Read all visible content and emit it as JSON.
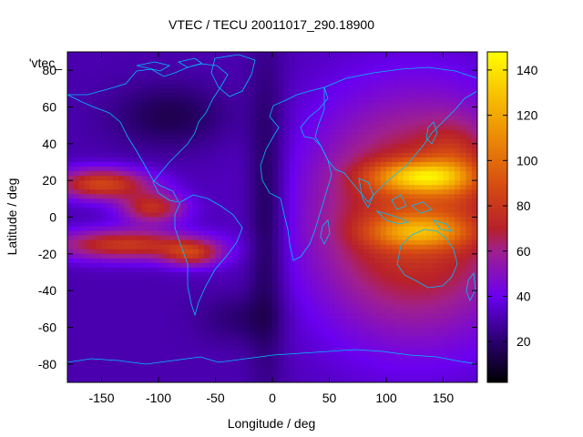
{
  "chart_data": {
    "type": "heatmap",
    "title": "VTEC / TECU 20011017_290.18900",
    "xlabel": "Longitude / deg",
    "ylabel": "Latitude / deg",
    "overlay_label": "'vtec_",
    "xlim": [
      -180,
      180
    ],
    "ylim": [
      -90,
      90
    ],
    "x_ticks": [
      -150,
      -100,
      -50,
      0,
      50,
      100,
      150
    ],
    "y_ticks": [
      -80,
      -60,
      -40,
      -20,
      0,
      20,
      40,
      60,
      80
    ],
    "colorbar": {
      "range": [
        2,
        148
      ],
      "ticks": [
        20,
        40,
        60,
        80,
        100,
        120,
        140
      ],
      "stops": [
        {
          "v": 2,
          "color": "#000000"
        },
        {
          "v": 20,
          "color": "#2a006e"
        },
        {
          "v": 40,
          "color": "#6a00f0"
        },
        {
          "v": 60,
          "color": "#a0208e"
        },
        {
          "v": 70,
          "color": "#b8202a"
        },
        {
          "v": 90,
          "color": "#d84f10"
        },
        {
          "v": 110,
          "color": "#ec8a06"
        },
        {
          "v": 130,
          "color": "#f8c400"
        },
        {
          "v": 148,
          "color": "#ffff00"
        }
      ]
    },
    "grid": {
      "lon_step": 5,
      "lat_step": 2.5,
      "background_vtec": 30,
      "features": [
        {
          "name": "south-pacific-crest-band",
          "lon": -130,
          "lat": -15,
          "sx": 45,
          "sy": 6,
          "amp": 50
        },
        {
          "name": "south-pacific-crest-east",
          "lon": -70,
          "lat": -20,
          "sx": 18,
          "sy": 5,
          "amp": 40
        },
        {
          "name": "north-pacific-crest-band",
          "lon": -150,
          "lat": 18,
          "sx": 30,
          "sy": 6,
          "amp": 55
        },
        {
          "name": "north-pacific-crest-east",
          "lon": -105,
          "lat": 5,
          "sx": 20,
          "sy": 6,
          "amp": 45
        },
        {
          "name": "asia-region-base",
          "lon": 125,
          "lat": 0,
          "sx": 65,
          "sy": 45,
          "amp": 55
        },
        {
          "name": "asia-north-crest",
          "lon": 130,
          "lat": 22,
          "sx": 30,
          "sy": 6,
          "amp": 60
        },
        {
          "name": "asia-south-crest",
          "lon": 130,
          "lat": -8,
          "sx": 30,
          "sy": 6,
          "amp": 45
        },
        {
          "name": "east-asia-high",
          "lon": 160,
          "lat": 30,
          "sx": 20,
          "sy": 15,
          "amp": 20
        },
        {
          "name": "atlantic-low-channel",
          "lon": -5,
          "lat": 0,
          "sx": 12,
          "sy": 60,
          "amp": -18
        },
        {
          "name": "north-america-low",
          "lon": -90,
          "lat": 55,
          "sx": 35,
          "sy": 12,
          "amp": -15
        },
        {
          "name": "south-atlantic-low",
          "lon": -30,
          "lat": -55,
          "sx": 25,
          "sy": 10,
          "amp": -10
        }
      ]
    }
  }
}
